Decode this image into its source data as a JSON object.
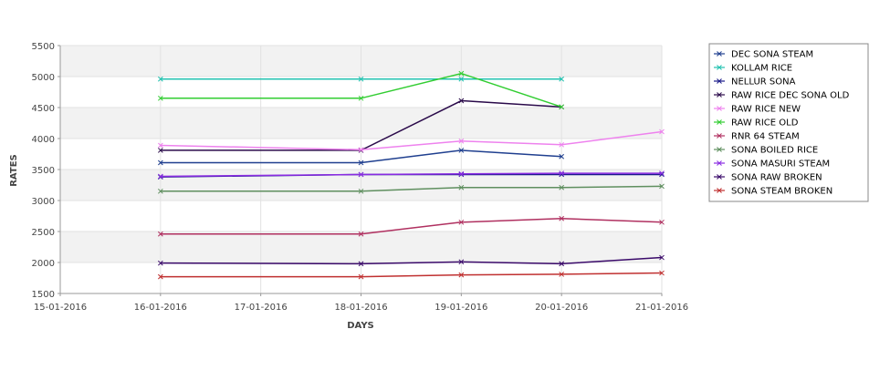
{
  "chart_data": {
    "type": "line",
    "title": "",
    "xlabel": "DAYS",
    "ylabel": "RATES",
    "x_ticks": [
      "15-01-2016",
      "16-01-2016",
      "17-01-2016",
      "18-01-2016",
      "19-01-2016",
      "20-01-2016",
      "21-01-2016"
    ],
    "y_ticks": [
      1500,
      2000,
      2500,
      3000,
      3500,
      4000,
      4500,
      5000,
      5500
    ],
    "ylim": [
      1500,
      5500
    ],
    "grid": "horizontal alternating bands with vertical gridlines",
    "legend_position": "right",
    "series": [
      {
        "name": "DEC SONA STEAM",
        "color": "#1f3f8f",
        "points": [
          [
            "16-01-2016",
            3610
          ],
          [
            "18-01-2016",
            3610
          ],
          [
            "19-01-2016",
            3810
          ],
          [
            "20-01-2016",
            3710
          ]
        ]
      },
      {
        "name": "KOLLAM RICE",
        "color": "#22c2b0",
        "points": [
          [
            "16-01-2016",
            4960
          ],
          [
            "18-01-2016",
            4960
          ],
          [
            "19-01-2016",
            4960
          ],
          [
            "20-01-2016",
            4960
          ]
        ]
      },
      {
        "name": "NELLUR SONA",
        "color": "#1a1a8a",
        "points": [
          [
            "16-01-2016",
            3380
          ],
          [
            "18-01-2016",
            3420
          ],
          [
            "19-01-2016",
            3420
          ],
          [
            "20-01-2016",
            3420
          ],
          [
            "21-01-2016",
            3420
          ]
        ]
      },
      {
        "name": "RAW RICE DEC SONA OLD",
        "color": "#2a0a4a",
        "points": [
          [
            "16-01-2016",
            3810
          ],
          [
            "18-01-2016",
            3810
          ],
          [
            "19-01-2016",
            4610
          ],
          [
            "20-01-2016",
            4510
          ]
        ]
      },
      {
        "name": "RAW RICE NEW",
        "color": "#ee82ee",
        "points": [
          [
            "16-01-2016",
            3890
          ],
          [
            "18-01-2016",
            3820
          ],
          [
            "19-01-2016",
            3960
          ],
          [
            "20-01-2016",
            3900
          ],
          [
            "21-01-2016",
            4110
          ]
        ]
      },
      {
        "name": "RAW RICE OLD",
        "color": "#32cd32",
        "points": [
          [
            "16-01-2016",
            4650
          ],
          [
            "18-01-2016",
            4650
          ],
          [
            "19-01-2016",
            5050
          ],
          [
            "20-01-2016",
            4510
          ]
        ]
      },
      {
        "name": "RNR 64 STEAM",
        "color": "#b03060",
        "points": [
          [
            "16-01-2016",
            2460
          ],
          [
            "18-01-2016",
            2460
          ],
          [
            "19-01-2016",
            2650
          ],
          [
            "20-01-2016",
            2710
          ],
          [
            "21-01-2016",
            2650
          ]
        ]
      },
      {
        "name": "SONA BOILED RICE",
        "color": "#5f8f5f",
        "points": [
          [
            "16-01-2016",
            3150
          ],
          [
            "18-01-2016",
            3150
          ],
          [
            "19-01-2016",
            3210
          ],
          [
            "20-01-2016",
            3210
          ],
          [
            "21-01-2016",
            3230
          ]
        ]
      },
      {
        "name": "SONA MASURI STEAM",
        "color": "#8a2be2",
        "points": [
          [
            "16-01-2016",
            3390
          ],
          [
            "18-01-2016",
            3420
          ],
          [
            "19-01-2016",
            3430
          ],
          [
            "20-01-2016",
            3440
          ],
          [
            "21-01-2016",
            3440
          ]
        ]
      },
      {
        "name": "SONA RAW BROKEN",
        "color": "#3a0a6a",
        "points": [
          [
            "16-01-2016",
            1990
          ],
          [
            "18-01-2016",
            1980
          ],
          [
            "19-01-2016",
            2010
          ],
          [
            "20-01-2016",
            1980
          ],
          [
            "21-01-2016",
            2080
          ]
        ]
      },
      {
        "name": "SONA STEAM BROKEN",
        "color": "#c03030",
        "points": [
          [
            "16-01-2016",
            1770
          ],
          [
            "18-01-2016",
            1770
          ],
          [
            "19-01-2016",
            1800
          ],
          [
            "20-01-2016",
            1810
          ],
          [
            "21-01-2016",
            1830
          ]
        ]
      }
    ]
  }
}
